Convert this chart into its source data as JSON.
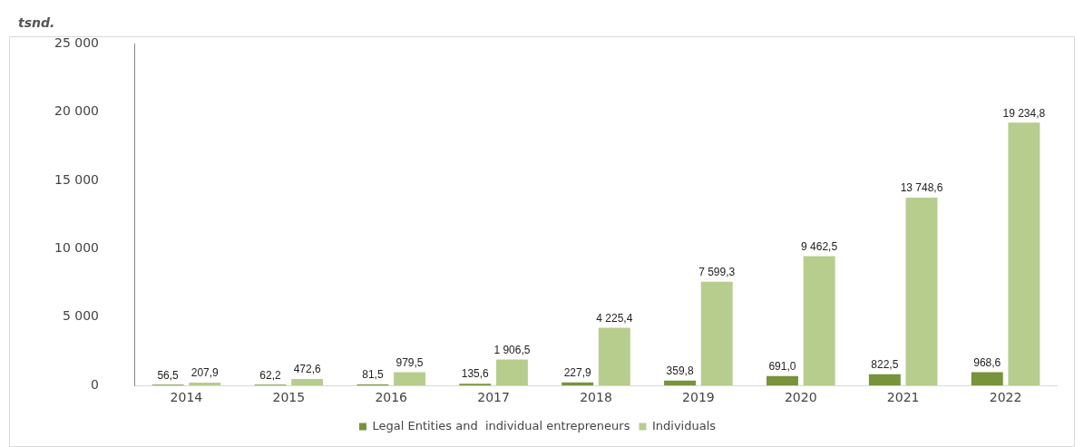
{
  "chart_data": {
    "type": "bar",
    "title": "tsnd.",
    "categories": [
      "2014",
      "2015",
      "2016",
      "2017",
      "2018",
      "2019",
      "2020",
      "2021",
      "2022"
    ],
    "series": [
      {
        "name": "Legal Entities and  individual entrepreneurs",
        "color": "#77933c",
        "values": [
          56.5,
          62.2,
          81.5,
          135.6,
          227.9,
          359.8,
          691.0,
          822.5,
          968.6
        ],
        "value_labels": [
          "56,5",
          "62,2",
          "81,5",
          "135,6",
          "227,9",
          "359,8",
          "691,0",
          "822,5",
          "968,6"
        ]
      },
      {
        "name": "Individuals",
        "color": "#b7cd8e",
        "values": [
          207.9,
          472.6,
          979.5,
          1906.5,
          4225.4,
          7599.3,
          9462.5,
          13748.6,
          19234.8
        ],
        "value_labels": [
          "207,9",
          "472,6",
          "979,5",
          "1 906,5",
          "4 225,4",
          "7 599,3",
          "9 462,5",
          "13 748,6",
          "19 234,8"
        ]
      }
    ],
    "ylim": [
      0,
      25000
    ],
    "yticks": [
      0,
      {
        "value": 5000,
        "label": "5 000"
      },
      {
        "value": 10000,
        "label": "10 000"
      },
      {
        "value": 15000,
        "label": "15 000"
      },
      {
        "value": 20000,
        "label": "20 000"
      },
      {
        "value": 25000,
        "label": "25 000"
      }
    ],
    "grid": false,
    "legend": "bottom"
  }
}
